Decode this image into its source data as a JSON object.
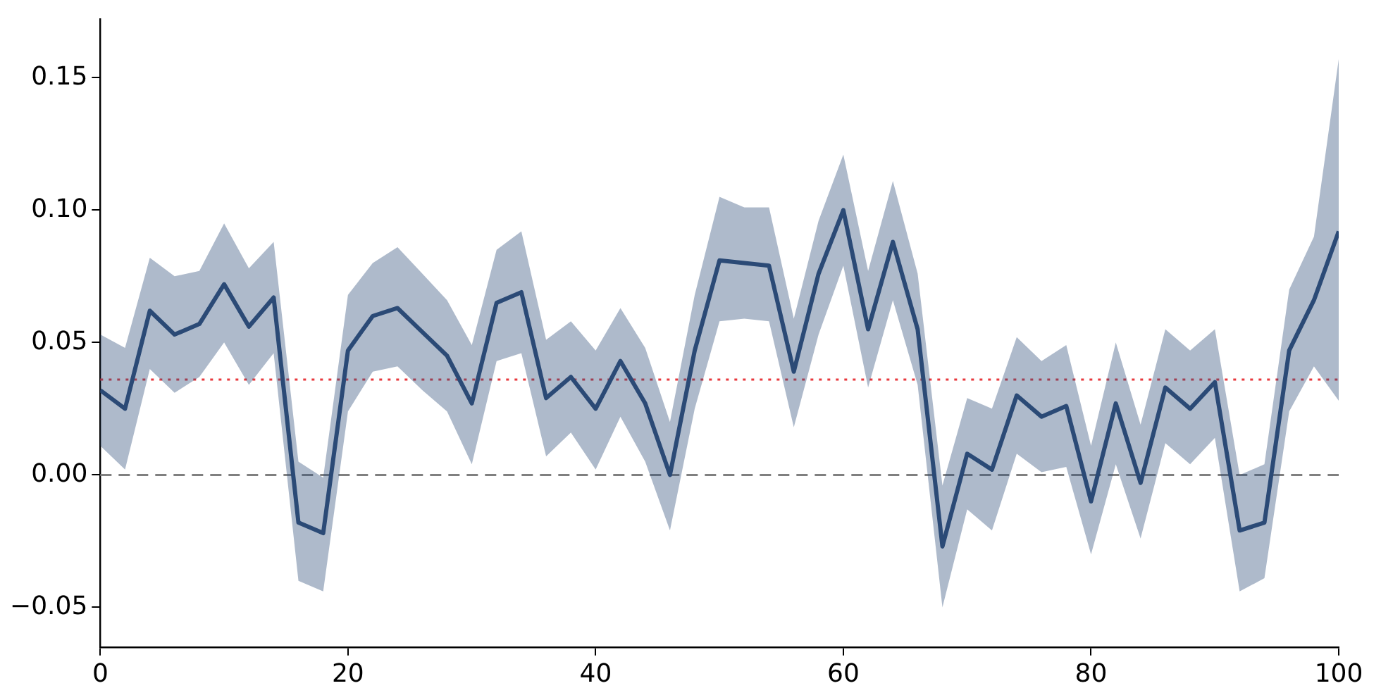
{
  "chart_data": {
    "type": "line",
    "x": [
      0,
      2,
      4,
      6,
      8,
      10,
      12,
      14,
      16,
      18,
      20,
      22,
      24,
      26,
      28,
      30,
      32,
      34,
      36,
      38,
      40,
      42,
      44,
      46,
      48,
      50,
      52,
      54,
      56,
      58,
      60,
      62,
      64,
      66,
      68,
      70,
      72,
      74,
      76,
      78,
      80,
      82,
      84,
      86,
      88,
      90,
      92,
      94,
      96,
      98,
      100
    ],
    "series": [
      {
        "color": "#2b4a76",
        "values": [
          0.032,
          0.025,
          0.062,
          0.053,
          0.057,
          0.072,
          0.056,
          0.067,
          -0.018,
          -0.022,
          0.047,
          0.06,
          0.063,
          0.054,
          0.045,
          0.027,
          0.065,
          0.069,
          0.029,
          0.037,
          0.025,
          0.043,
          0.027,
          0.0,
          0.047,
          0.081,
          0.08,
          0.079,
          0.039,
          0.076,
          0.1,
          0.055,
          0.088,
          0.055,
          -0.027,
          0.008,
          0.002,
          0.03,
          0.022,
          0.026,
          -0.01,
          0.027,
          -0.003,
          0.033,
          0.025,
          0.035,
          -0.021,
          -0.018,
          0.047,
          0.066,
          0.092
        ],
        "upper": [
          0.053,
          0.048,
          0.082,
          0.075,
          0.077,
          0.095,
          0.078,
          0.088,
          0.005,
          -0.001,
          0.068,
          0.08,
          0.086,
          0.076,
          0.066,
          0.049,
          0.085,
          0.092,
          0.051,
          0.058,
          0.047,
          0.063,
          0.048,
          0.02,
          0.068,
          0.105,
          0.101,
          0.101,
          0.059,
          0.096,
          0.121,
          0.077,
          0.111,
          0.076,
          -0.004,
          0.029,
          0.025,
          0.052,
          0.043,
          0.049,
          0.011,
          0.05,
          0.019,
          0.055,
          0.047,
          0.055,
          0.0,
          0.004,
          0.07,
          0.09,
          0.157
        ],
        "lower": [
          0.011,
          0.002,
          0.04,
          0.031,
          0.037,
          0.05,
          0.034,
          0.046,
          -0.04,
          -0.044,
          0.024,
          0.039,
          0.041,
          0.032,
          0.024,
          0.004,
          0.043,
          0.046,
          0.007,
          0.016,
          0.002,
          0.022,
          0.005,
          -0.021,
          0.025,
          0.058,
          0.059,
          0.058,
          0.018,
          0.053,
          0.079,
          0.033,
          0.066,
          0.034,
          -0.05,
          -0.013,
          -0.021,
          0.008,
          0.001,
          0.003,
          -0.03,
          0.004,
          -0.024,
          0.012,
          0.004,
          0.014,
          -0.044,
          -0.039,
          0.024,
          0.041,
          0.028
        ]
      }
    ],
    "xlim": [
      0,
      100
    ],
    "xticks": [
      0,
      20,
      40,
      60,
      80,
      100
    ],
    "ylim": [
      -0.065,
      0.172
    ],
    "yticks": [
      {
        "value": -0.05,
        "label": "−0.05"
      },
      {
        "value": 0,
        "label": "0.00"
      },
      {
        "value": 0.05,
        "label": "0.05"
      },
      {
        "value": 0.1,
        "label": "0.10"
      },
      {
        "value": 0.15,
        "label": "0.15"
      }
    ],
    "ref_lines": [
      {
        "axis": "y",
        "value": 0,
        "color": "#808080",
        "line_style": "dashed"
      },
      {
        "axis": "y",
        "value": 0.036,
        "color": "#e8383d",
        "line_style": "dotted"
      }
    ],
    "grid": false,
    "legend": false,
    "marker": "none",
    "line_style": "solid"
  }
}
